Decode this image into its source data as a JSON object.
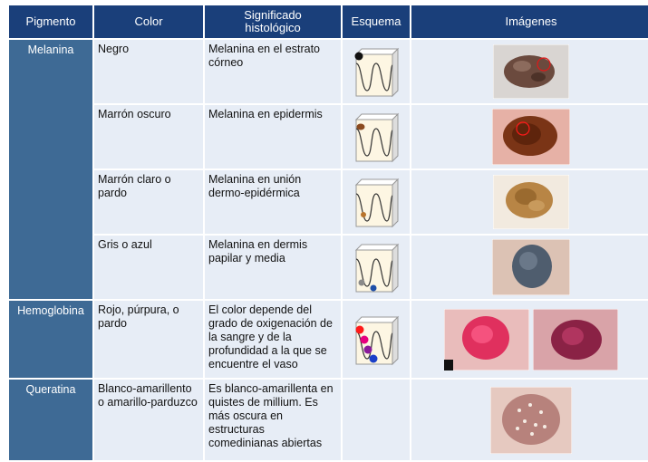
{
  "headers": {
    "pigmento": "Pigmento",
    "color": "Color",
    "significado_1": "Significado",
    "significado_2": "histológico",
    "esquema": "Esquema",
    "imagenes": "Imágenes"
  },
  "rows": [
    {
      "pigmento": "Melanina",
      "color": "Negro",
      "significado": "Melanina en el estrato córneo",
      "image_colors": {
        "bg": "#d9d5d2",
        "lesion": "#6b4a3e"
      }
    },
    {
      "pigmento": "",
      "color": "Marrón oscuro",
      "significado": "Melanina en epidermis",
      "image_colors": {
        "bg": "#e6b1a6",
        "lesion": "#7a3416"
      }
    },
    {
      "pigmento": "",
      "color": "Marrón claro o pardo",
      "significado": "Melanina en unión dermo-epidérmica",
      "image_colors": {
        "bg": "#f2eadf",
        "lesion": "#b88545"
      }
    },
    {
      "pigmento": "",
      "color": "Gris o azul",
      "significado": "Melanina en dermis papilar y media",
      "image_colors": {
        "bg": "#dcc2b4",
        "lesion": "#4f5d6e"
      }
    },
    {
      "pigmento": "Hemoglobina",
      "color": "Rojo, púrpura, o pardo",
      "significado": "El color depende del grado de oxigenación de la sangre y de la profundidad a la que se encuentre el vaso",
      "image_colors": {
        "bg": "#e9bcbb",
        "lesion": "#e0305e",
        "bg2": "#d9a3a8",
        "lesion2": "#8a2245"
      }
    },
    {
      "pigmento": "Queratina",
      "color": "Blanco-amarillento o amarillo-parduzco",
      "significado": "Es blanco-amarillenta en quistes de millium. Es más oscura en estructuras comedinianas abiertas",
      "image_colors": {
        "bg": "#e6c9c0",
        "lesion": "#b7827c"
      }
    }
  ],
  "colors": {
    "header_bg": "#1a3f7a",
    "pigment_bg": "#3e6a95",
    "cell_bg": "#e7edf6"
  }
}
